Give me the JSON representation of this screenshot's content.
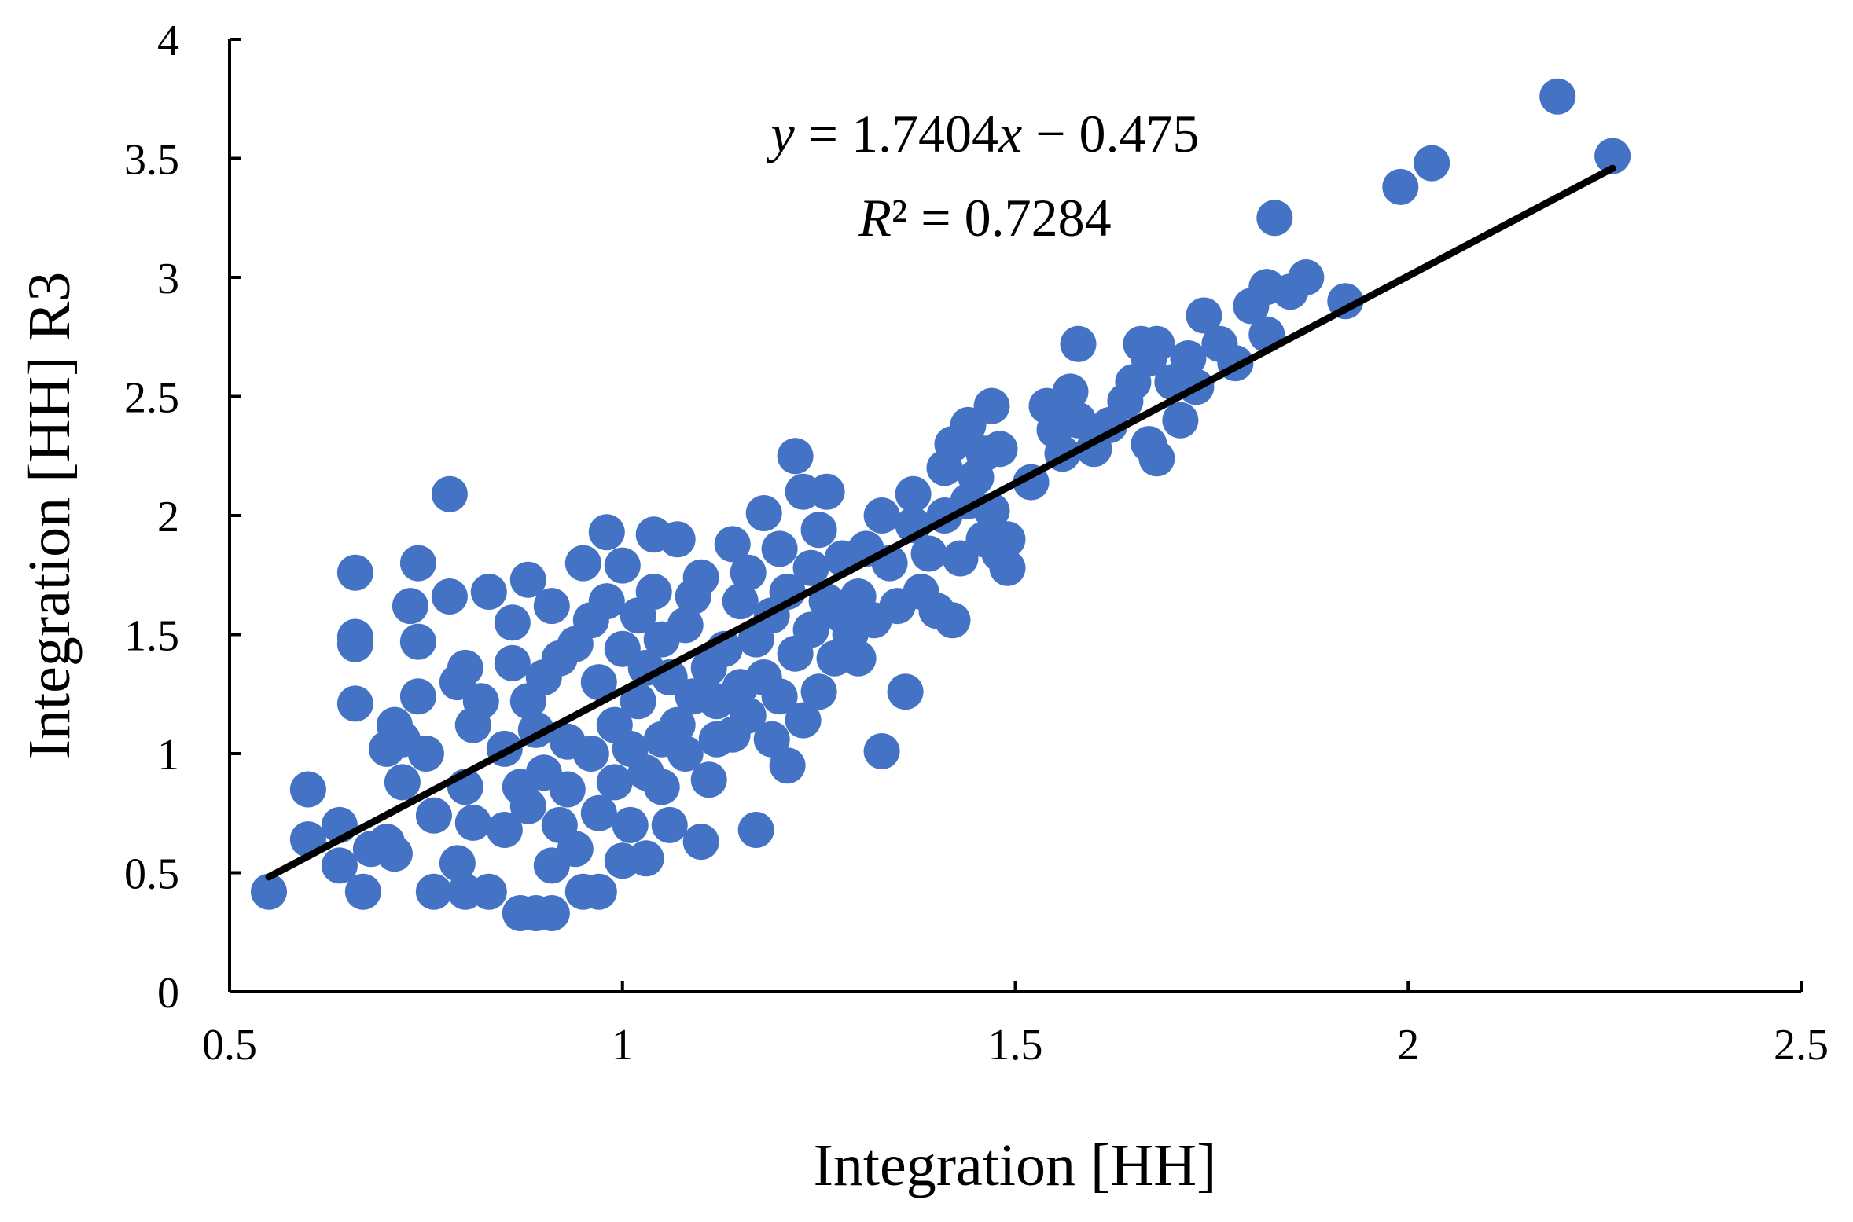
{
  "chart_data": {
    "type": "scatter",
    "xlabel": "Integration [HH]",
    "ylabel": "Integration [HH] R3",
    "xlim": [
      0.5,
      2.5
    ],
    "ylim": [
      0,
      4
    ],
    "x_ticks": [
      0.5,
      1,
      1.5,
      2,
      2.5
    ],
    "y_ticks": [
      0,
      0.5,
      1,
      1.5,
      2,
      2.5,
      3,
      3.5,
      4
    ],
    "x_tick_labels": [
      "0.5",
      "1",
      "1.5",
      "2",
      "2.5"
    ],
    "y_tick_labels": [
      "0",
      "0.5",
      "1",
      "1.5",
      "2",
      "2.5",
      "3",
      "3.5",
      "4"
    ],
    "grid": false,
    "legend": "none",
    "colors": {
      "point": "#4472C4",
      "trendline": "#000000"
    },
    "trendline": {
      "slope": 1.7404,
      "intercept": -0.475,
      "x_range": [
        0.55,
        2.26
      ],
      "equation_label": {
        "y": "y",
        "eq": " = 1.7404",
        "x": "x",
        "rest": " − 0.475"
      },
      "r2_label": {
        "R": "R",
        "rest": "² = 0.7284"
      }
    },
    "points": [
      [
        0.55,
        0.42
      ],
      [
        0.6,
        0.85
      ],
      [
        0.6,
        0.64
      ],
      [
        0.64,
        0.7
      ],
      [
        0.64,
        0.53
      ],
      [
        0.67,
        0.42
      ],
      [
        0.66,
        1.76
      ],
      [
        0.66,
        1.49
      ],
      [
        0.66,
        1.46
      ],
      [
        0.66,
        1.21
      ],
      [
        0.68,
        0.6
      ],
      [
        0.7,
        0.63
      ],
      [
        0.71,
        0.58
      ],
      [
        0.7,
        1.02
      ],
      [
        0.71,
        1.12
      ],
      [
        0.72,
        0.88
      ],
      [
        0.72,
        1.06
      ],
      [
        0.73,
        1.62
      ],
      [
        0.74,
        1.8
      ],
      [
        0.74,
        1.47
      ],
      [
        0.74,
        1.24
      ],
      [
        0.75,
        1.0
      ],
      [
        0.76,
        0.74
      ],
      [
        0.76,
        0.42
      ],
      [
        0.78,
        2.09
      ],
      [
        0.78,
        1.66
      ],
      [
        0.79,
        1.3
      ],
      [
        0.8,
        1.36
      ],
      [
        0.8,
        0.86
      ],
      [
        0.79,
        0.54
      ],
      [
        0.8,
        0.42
      ],
      [
        0.81,
        0.71
      ],
      [
        0.81,
        1.12
      ],
      [
        0.82,
        1.22
      ],
      [
        0.83,
        1.68
      ],
      [
        0.83,
        0.42
      ],
      [
        0.85,
        1.02
      ],
      [
        0.85,
        0.68
      ],
      [
        0.86,
        1.55
      ],
      [
        0.86,
        1.38
      ],
      [
        0.87,
        0.86
      ],
      [
        0.87,
        0.33
      ],
      [
        0.88,
        0.78
      ],
      [
        0.88,
        1.73
      ],
      [
        0.88,
        1.22
      ],
      [
        0.89,
        1.1
      ],
      [
        0.89,
        0.33
      ],
      [
        0.9,
        1.32
      ],
      [
        0.9,
        0.92
      ],
      [
        0.91,
        0.33
      ],
      [
        0.91,
        1.62
      ],
      [
        0.91,
        0.53
      ],
      [
        0.92,
        1.4
      ],
      [
        0.92,
        0.7
      ],
      [
        0.93,
        1.05
      ],
      [
        0.93,
        0.85
      ],
      [
        0.94,
        1.46
      ],
      [
        0.94,
        0.6
      ],
      [
        0.95,
        1.8
      ],
      [
        0.95,
        0.42
      ],
      [
        0.96,
        1.0
      ],
      [
        0.96,
        1.56
      ],
      [
        0.97,
        0.42
      ],
      [
        0.97,
        0.75
      ],
      [
        0.97,
        1.3
      ],
      [
        0.98,
        1.93
      ],
      [
        0.98,
        1.64
      ],
      [
        0.99,
        0.88
      ],
      [
        0.99,
        1.12
      ],
      [
        1.0,
        1.79
      ],
      [
        1.0,
        1.44
      ],
      [
        1.0,
        0.55
      ],
      [
        1.01,
        1.02
      ],
      [
        1.01,
        0.7
      ],
      [
        1.02,
        1.58
      ],
      [
        1.02,
        1.22
      ],
      [
        1.03,
        0.92
      ],
      [
        1.03,
        1.36
      ],
      [
        1.03,
        0.56
      ],
      [
        1.04,
        1.92
      ],
      [
        1.04,
        1.68
      ],
      [
        1.05,
        1.06
      ],
      [
        1.05,
        1.48
      ],
      [
        1.05,
        0.86
      ],
      [
        1.06,
        1.32
      ],
      [
        1.06,
        0.7
      ],
      [
        1.07,
        1.9
      ],
      [
        1.07,
        1.12
      ],
      [
        1.08,
        1.54
      ],
      [
        1.08,
        1.0
      ],
      [
        1.09,
        1.24
      ],
      [
        1.09,
        1.66
      ],
      [
        1.1,
        1.74
      ],
      [
        1.1,
        0.63
      ],
      [
        1.11,
        1.36
      ],
      [
        1.11,
        0.89
      ],
      [
        1.12,
        1.06
      ],
      [
        1.12,
        1.22
      ],
      [
        1.13,
        1.44
      ],
      [
        1.14,
        1.88
      ],
      [
        1.14,
        1.08
      ],
      [
        1.15,
        1.64
      ],
      [
        1.15,
        1.28
      ],
      [
        1.16,
        1.76
      ],
      [
        1.16,
        1.16
      ],
      [
        1.17,
        1.48
      ],
      [
        1.17,
        0.68
      ],
      [
        1.18,
        2.01
      ],
      [
        1.18,
        1.32
      ],
      [
        1.19,
        1.58
      ],
      [
        1.19,
        1.06
      ],
      [
        1.2,
        1.86
      ],
      [
        1.2,
        1.24
      ],
      [
        1.21,
        0.95
      ],
      [
        1.21,
        1.68
      ],
      [
        1.22,
        2.25
      ],
      [
        1.22,
        1.42
      ],
      [
        1.23,
        2.1
      ],
      [
        1.23,
        1.14
      ],
      [
        1.24,
        1.78
      ],
      [
        1.24,
        1.52
      ],
      [
        1.25,
        1.26
      ],
      [
        1.25,
        1.94
      ],
      [
        1.26,
        2.1
      ],
      [
        1.26,
        1.64
      ],
      [
        1.27,
        1.4
      ],
      [
        1.28,
        1.82
      ],
      [
        1.28,
        1.58
      ],
      [
        1.29,
        1.5
      ],
      [
        1.3,
        1.66
      ],
      [
        1.3,
        1.4
      ],
      [
        1.31,
        1.86
      ],
      [
        1.32,
        1.56
      ],
      [
        1.33,
        2.0
      ],
      [
        1.33,
        1.01
      ],
      [
        1.34,
        1.8
      ],
      [
        1.35,
        1.62
      ],
      [
        1.36,
        1.26
      ],
      [
        1.37,
        1.96
      ],
      [
        1.37,
        2.09
      ],
      [
        1.38,
        1.68
      ],
      [
        1.39,
        1.84
      ],
      [
        1.4,
        1.6
      ],
      [
        1.41,
        2.0
      ],
      [
        1.41,
        2.2
      ],
      [
        1.42,
        1.56
      ],
      [
        1.42,
        2.3
      ],
      [
        1.43,
        1.82
      ],
      [
        1.44,
        2.38
      ],
      [
        1.44,
        2.06
      ],
      [
        1.45,
        2.16
      ],
      [
        1.46,
        1.9
      ],
      [
        1.46,
        2.26
      ],
      [
        1.47,
        2.46
      ],
      [
        1.47,
        2.02
      ],
      [
        1.48,
        1.84
      ],
      [
        1.48,
        2.28
      ],
      [
        1.49,
        1.9
      ],
      [
        1.49,
        1.78
      ],
      [
        1.52,
        2.14
      ],
      [
        1.54,
        2.46
      ],
      [
        1.55,
        2.36
      ],
      [
        1.56,
        2.26
      ],
      [
        1.57,
        2.52
      ],
      [
        1.58,
        2.72
      ],
      [
        1.58,
        2.4
      ],
      [
        1.6,
        2.28
      ],
      [
        1.62,
        2.38
      ],
      [
        1.64,
        2.48
      ],
      [
        1.65,
        2.56
      ],
      [
        1.66,
        2.72
      ],
      [
        1.67,
        2.66
      ],
      [
        1.67,
        2.3
      ],
      [
        1.68,
        2.24
      ],
      [
        1.68,
        2.72
      ],
      [
        1.7,
        2.56
      ],
      [
        1.71,
        2.4
      ],
      [
        1.72,
        2.66
      ],
      [
        1.73,
        2.54
      ],
      [
        1.74,
        2.84
      ],
      [
        1.76,
        2.72
      ],
      [
        1.78,
        2.64
      ],
      [
        1.8,
        2.88
      ],
      [
        1.82,
        2.76
      ],
      [
        1.82,
        2.96
      ],
      [
        1.83,
        3.25
      ],
      [
        1.85,
        2.94
      ],
      [
        1.87,
        3.0
      ],
      [
        1.92,
        2.9
      ],
      [
        1.99,
        3.38
      ],
      [
        2.03,
        3.48
      ],
      [
        2.19,
        3.76
      ],
      [
        2.26,
        3.51
      ]
    ]
  }
}
